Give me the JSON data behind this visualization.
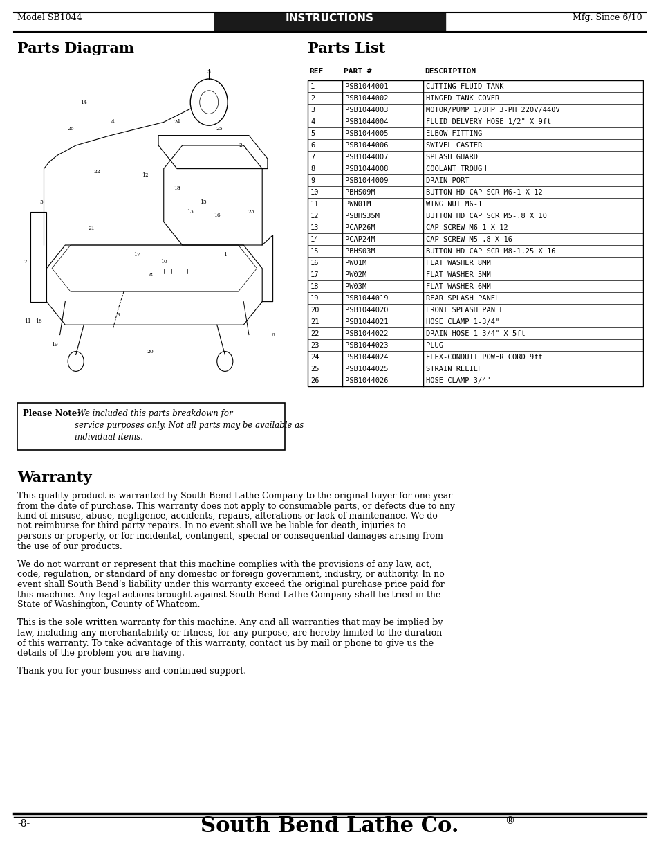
{
  "header_model": "Model SB1044",
  "header_title": "INSTRUCTIONS",
  "header_mfg": "Mfg. Since 6/10",
  "parts_diagram_title": "Parts Diagram",
  "parts_list_title": "Parts List",
  "warranty_title": "Warranty",
  "parts_table_headers": [
    "REF",
    "PART #",
    "DESCRIPTION"
  ],
  "parts": [
    [
      "1",
      "PSB1044001",
      "CUTTING FLUID TANK"
    ],
    [
      "2",
      "PSB1044002",
      "HINGED TANK COVER"
    ],
    [
      "3",
      "PSB1044003",
      "MOTOR/PUMP 1/8HP 3-PH 220V/440V"
    ],
    [
      "4",
      "PSB1044004",
      "FLUID DELVERY HOSE 1/2\" X 9ft"
    ],
    [
      "5",
      "PSB1044005",
      "ELBOW FITTING"
    ],
    [
      "6",
      "PSB1044006",
      "SWIVEL CASTER"
    ],
    [
      "7",
      "PSB1044007",
      "SPLASH GUARD"
    ],
    [
      "8",
      "PSB1044008",
      "COOLANT TROUGH"
    ],
    [
      "9",
      "PSB1044009",
      "DRAIN PORT"
    ],
    [
      "10",
      "PBHS09M",
      "BUTTON HD CAP SCR M6-1 X 12"
    ],
    [
      "11",
      "PWN01M",
      "WING NUT M6-1"
    ],
    [
      "12",
      "PSBHS35M",
      "BUTTON HD CAP SCR M5-.8 X 10"
    ],
    [
      "13",
      "PCAP26M",
      "CAP SCREW M6-1 X 12"
    ],
    [
      "14",
      "PCAP24M",
      "CAP SCREW M5-.8 X 16"
    ],
    [
      "15",
      "PBHS03M",
      "BUTTON HD CAP SCR M8-1.25 X 16"
    ],
    [
      "16",
      "PW01M",
      "FLAT WASHER 8MM"
    ],
    [
      "17",
      "PW02M",
      "FLAT WASHER 5MM"
    ],
    [
      "18",
      "PW03M",
      "FLAT WASHER 6MM"
    ],
    [
      "19",
      "PSB1044019",
      "REAR SPLASH PANEL"
    ],
    [
      "20",
      "PSB1044020",
      "FRONT SPLASH PANEL"
    ],
    [
      "21",
      "PSB1044021",
      "HOSE CLAMP 1-3/4\""
    ],
    [
      "22",
      "PSB1044022",
      "DRAIN HOSE 1-3/4\" X 5ft"
    ],
    [
      "23",
      "PSB1044023",
      "PLUG"
    ],
    [
      "24",
      "PSB1044024",
      "FLEX-CONDUIT POWER CORD 9ft"
    ],
    [
      "25",
      "PSB1044025",
      "STRAIN RELIEF"
    ],
    [
      "26",
      "PSB1044026",
      "HOSE CLAMP 3/4\""
    ]
  ],
  "please_note_bold": "Please Note:",
  "please_note_italic": " We included this parts breakdown for\nservice purposes only. Not all parts may be available as\nindividual items.",
  "warranty_paragraphs": [
    "This quality product is warranted by South Bend Lathe Company to the original buyer for one year from the date of purchase. This warranty does not apply to consumable parts, or defects due to any kind of misuse, abuse, negligence, accidents, repairs, alterations or lack of maintenance. We do not reimburse for third party repairs. In no event shall we be liable for death, injuries to persons or property, or for incidental, contingent, special or consequential damages arising from the use of our products.",
    "We do not warrant or represent that this machine complies with the provisions of any law, act, code, regulation, or standard of any domestic or foreign government, industry, or authority. In no event shall South Bend’s liability under this warranty exceed the original purchase price paid for this machine. Any legal actions brought against South Bend Lathe Company shall be tried in the State of Washington, County of Whatcom.",
    "This is the sole written warranty for this machine. Any and all warranties that may be implied by law, including any merchantability or fitness, for any purpose, are hereby limited to the duration of this warranty. To take advantage of this warranty, contact us by mail or phone to give us the details of the problem you are having.",
    "Thank you for your business and continued support."
  ],
  "footer_left": "-8-",
  "footer_center": "South Bend Lathe Co.",
  "bg_color": "#ffffff",
  "header_bg": "#1a1a1a",
  "text_color": "#000000"
}
